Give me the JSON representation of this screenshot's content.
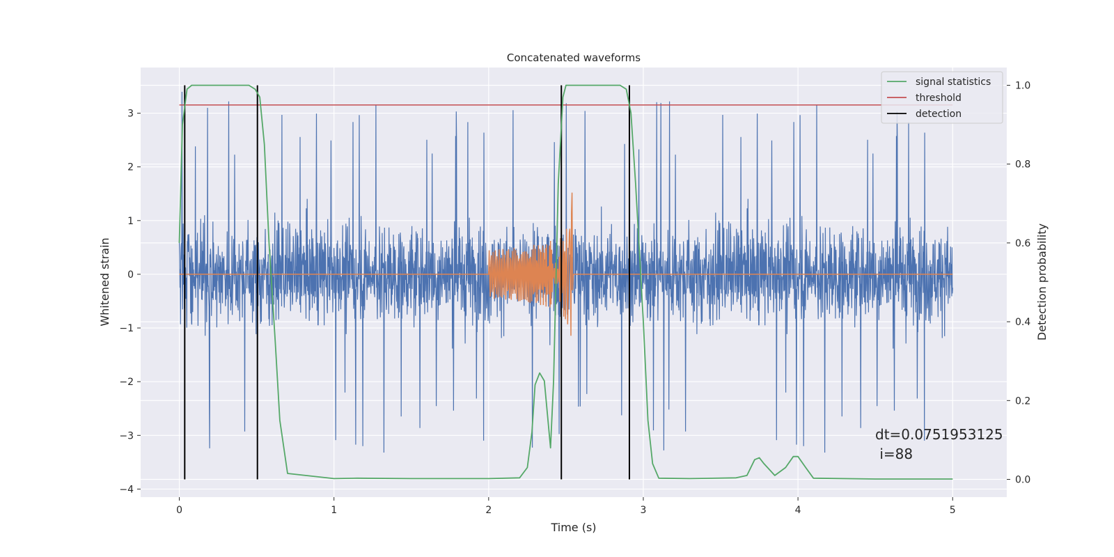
{
  "chart_data": {
    "type": "line",
    "title": "Concatenated waveforms",
    "xlabel": "Time (s)",
    "ylabel": "Whitened strain",
    "ylabel_right": "Detection probability",
    "xlim": [
      -0.25,
      5.35
    ],
    "ylim": [
      -4.15,
      3.85
    ],
    "ylim_right": [
      -0.045,
      1.045
    ],
    "x_ticks": [
      0,
      1,
      2,
      3,
      4,
      5
    ],
    "y_ticks": [
      -4,
      -3,
      -2,
      -1,
      0,
      1,
      2,
      3
    ],
    "y_ticks_right": [
      0.0,
      0.2,
      0.4,
      0.6,
      0.8,
      1.0
    ],
    "grid": true,
    "legend_position": "top-right",
    "colors": {
      "background": "#eaeaf2",
      "noise": "#4c72b0",
      "injection": "#dd8452",
      "signal_statistics": "#55a868",
      "threshold": "#c44e52",
      "detection": "#000000"
    },
    "series": [
      {
        "name": "",
        "kind": "whitened-strain-noise",
        "x_range": [
          0,
          5
        ],
        "approx_amplitude_band": [
          -2.3,
          2.3
        ],
        "max_spike": 3.5,
        "min_spike": -3.8
      },
      {
        "name": "",
        "kind": "injected-chirp",
        "x_range": [
          2.0,
          2.55
        ],
        "peak_time": 2.54,
        "peak_amplitude": 1.7,
        "start_amplitude": 0.45
      },
      {
        "name": "signal statistics",
        "axis": "right",
        "x": [
          0.0,
          0.02,
          0.05,
          0.08,
          0.15,
          0.3,
          0.45,
          0.49,
          0.52,
          0.55,
          0.58,
          0.62,
          0.65,
          0.7,
          1.0,
          1.15,
          1.5,
          2.0,
          2.2,
          2.25,
          2.28,
          2.3,
          2.33,
          2.36,
          2.4,
          2.42,
          2.45,
          2.48,
          2.5,
          2.55,
          2.7,
          2.85,
          2.89,
          2.92,
          2.95,
          3.0,
          3.03,
          3.06,
          3.1,
          3.3,
          3.6,
          3.67,
          3.72,
          3.75,
          3.78,
          3.85,
          3.92,
          3.97,
          4.0,
          4.05,
          4.1,
          4.5,
          5.0
        ],
        "y": [
          0.6,
          0.9,
          0.99,
          1.0,
          1.0,
          1.0,
          1.0,
          0.99,
          0.97,
          0.85,
          0.6,
          0.35,
          0.15,
          0.015,
          0.002,
          0.003,
          0.002,
          0.002,
          0.004,
          0.03,
          0.12,
          0.24,
          0.27,
          0.25,
          0.08,
          0.25,
          0.75,
          0.97,
          1.0,
          1.0,
          1.0,
          1.0,
          0.99,
          0.93,
          0.75,
          0.4,
          0.15,
          0.04,
          0.003,
          0.002,
          0.004,
          0.01,
          0.05,
          0.055,
          0.04,
          0.01,
          0.03,
          0.058,
          0.058,
          0.03,
          0.003,
          0.001,
          0.001
        ]
      },
      {
        "name": "threshold",
        "axis": "right",
        "x": [
          0,
          5
        ],
        "y": [
          0.95,
          0.95
        ]
      }
    ],
    "detections": {
      "name": "detection",
      "x": [
        0.035,
        0.505,
        2.47,
        2.91
      ],
      "ymin": 0.0,
      "ymax": 1.0
    },
    "annotation": {
      "line1": "dt=0.0751953125",
      "line2": " i=88"
    },
    "legend": [
      "signal statistics",
      "threshold",
      "detection"
    ]
  }
}
